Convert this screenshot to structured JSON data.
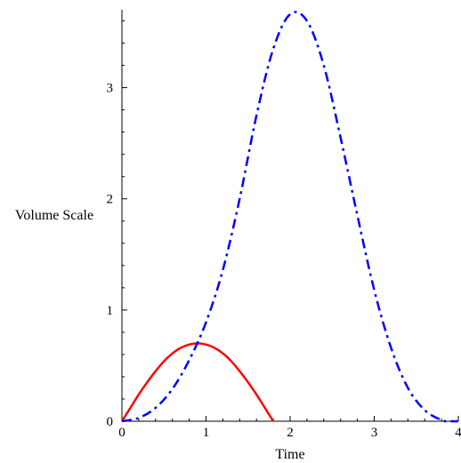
{
  "chart_data": {
    "type": "line",
    "title": "",
    "xlabel": "Time",
    "ylabel": "Volume Scale",
    "xlim": [
      0,
      4
    ],
    "ylim": [
      0,
      3.7
    ],
    "x_ticks": [
      0,
      1,
      2,
      3,
      4
    ],
    "y_ticks": [
      0,
      1,
      2,
      3
    ],
    "grid": false,
    "legend": "none",
    "series": [
      {
        "color": "#ff0000",
        "line_style": "solid",
        "x": [
          0,
          0.1,
          0.2,
          0.3,
          0.4,
          0.5,
          0.6,
          0.7,
          0.8,
          0.9,
          1.0,
          1.1,
          1.2,
          1.3,
          1.4,
          1.5,
          1.6,
          1.7,
          1.8
        ],
        "y": [
          0,
          0.12,
          0.24,
          0.35,
          0.45,
          0.54,
          0.61,
          0.66,
          0.69,
          0.7,
          0.69,
          0.66,
          0.61,
          0.54,
          0.45,
          0.35,
          0.24,
          0.12,
          0
        ]
      },
      {
        "color": "#0000ff",
        "line_style": "dash-dot",
        "x": [
          0,
          0.2,
          0.4,
          0.6,
          0.8,
          1.0,
          1.2,
          1.4,
          1.6,
          1.8,
          2.0,
          2.2,
          2.4,
          2.6,
          2.8,
          3.0,
          3.2,
          3.4,
          3.6,
          3.8,
          3.9,
          4.0
        ],
        "y": [
          0,
          0.03,
          0.12,
          0.29,
          0.55,
          0.89,
          1.36,
          2.0,
          2.75,
          3.35,
          3.66,
          3.6,
          3.2,
          2.55,
          1.85,
          1.18,
          0.66,
          0.3,
          0.1,
          0.01,
          0.0,
          0
        ]
      }
    ]
  }
}
